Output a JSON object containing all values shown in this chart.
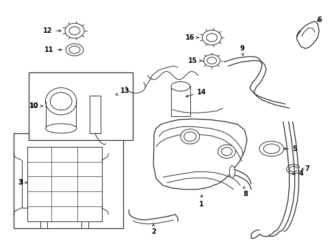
{
  "background_color": "#ffffff",
  "line_color": "#2a2a2a",
  "label_color": "#000000",
  "fig_width": 4.89,
  "fig_height": 3.6,
  "dpi": 100
}
